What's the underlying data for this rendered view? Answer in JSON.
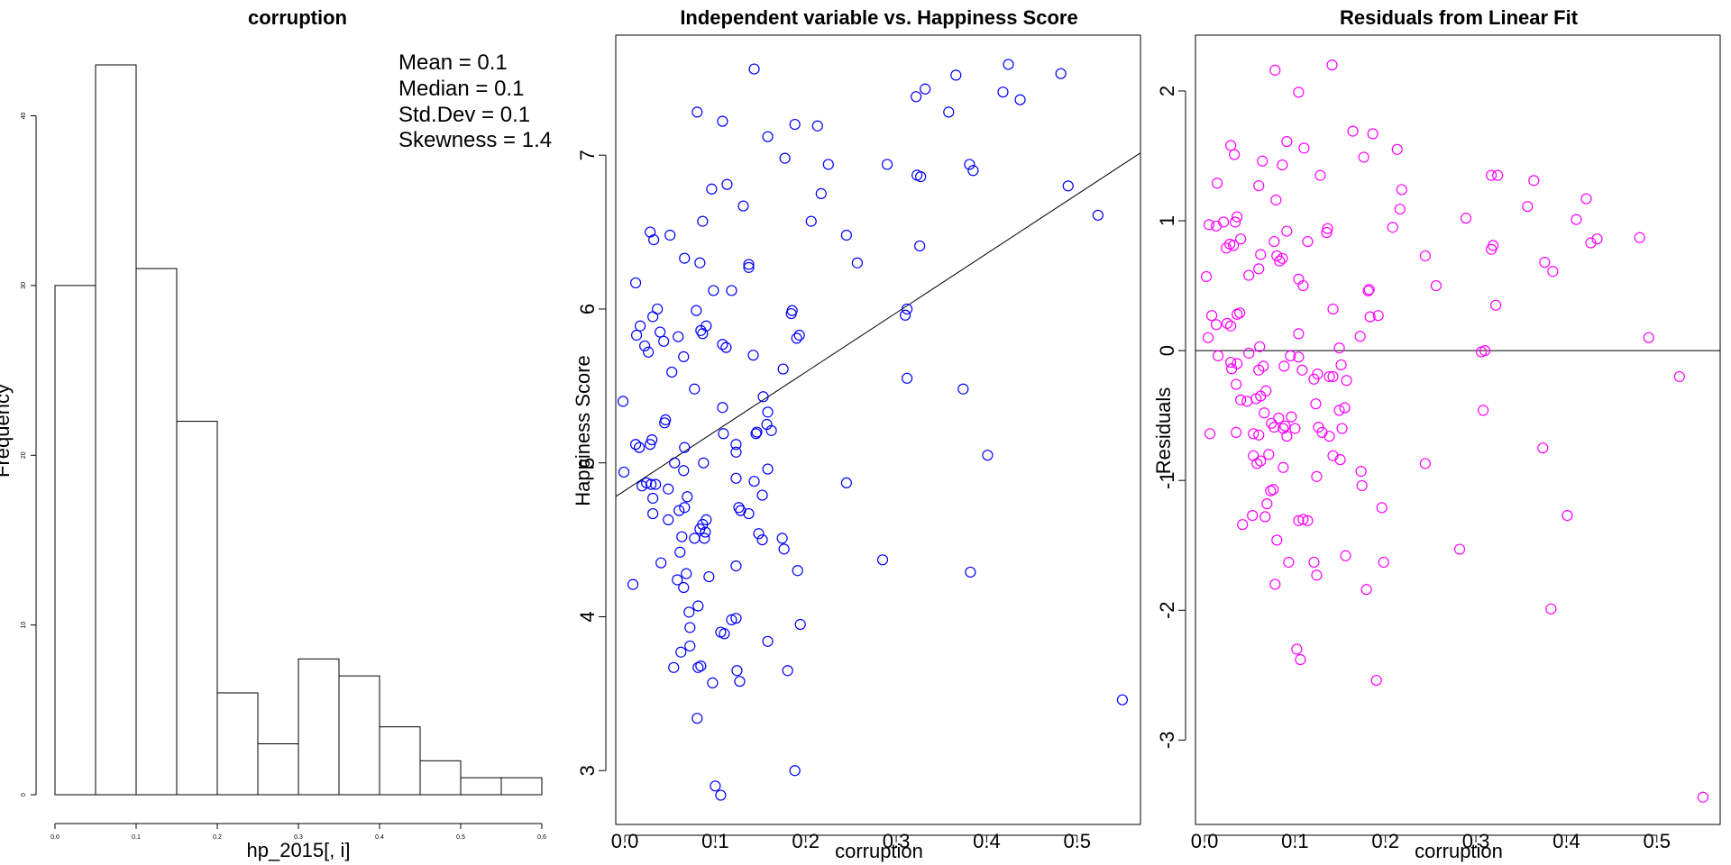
{
  "chart_data": [
    {
      "type": "bar",
      "title": "corruption",
      "xlabel": "hp_2015[, i]",
      "ylabel": "Frequency",
      "bin_edges": [
        0.0,
        0.05,
        0.1,
        0.15,
        0.2,
        0.25,
        0.3,
        0.35,
        0.4,
        0.45,
        0.5,
        0.55,
        0.6
      ],
      "values": [
        30,
        43,
        31,
        22,
        6,
        3,
        8,
        7,
        4,
        2,
        1,
        1
      ],
      "xlim": [
        0.0,
        0.6
      ],
      "ylim": [
        0,
        43
      ],
      "x_ticks": [
        "0.0",
        "0.1",
        "0.2",
        "0.3",
        "0.4",
        "0.5",
        "0.6"
      ],
      "y_ticks": [
        "0",
        "10",
        "20",
        "30",
        "40"
      ],
      "annotations": [
        "Mean = 0.1",
        "Median = 0.1",
        "Std.Dev = 0.1",
        "Skewness = 1.4"
      ]
    },
    {
      "type": "scatter",
      "title": "Independent variable vs. Happiness Score",
      "xlabel": "corruption",
      "ylabel": "Happiness Score",
      "xlim": [
        -0.01,
        0.57
      ],
      "ylim": [
        2.65,
        7.78
      ],
      "x_ticks": [
        "0.0",
        "0.1",
        "0.2",
        "0.3",
        "0.4",
        "0.5"
      ],
      "y_ticks": [
        "3",
        "4",
        "5",
        "6",
        "7"
      ],
      "color": "#0000ff",
      "fit_line": {
        "intercept": 4.82,
        "slope": 3.85
      },
      "points": [
        [
          0.143,
          7.56
        ],
        [
          0.424,
          7.59
        ],
        [
          0.08,
          7.28
        ],
        [
          0.108,
          7.22
        ],
        [
          0.366,
          7.52
        ],
        [
          0.482,
          7.53
        ],
        [
          0.332,
          7.43
        ],
        [
          0.418,
          7.41
        ],
        [
          0.437,
          7.36
        ],
        [
          0.322,
          7.38
        ],
        [
          0.358,
          7.28
        ],
        [
          0.188,
          7.2
        ],
        [
          0.213,
          7.19
        ],
        [
          0.158,
          7.12
        ],
        [
          0.177,
          6.98
        ],
        [
          0.225,
          6.94
        ],
        [
          0.29,
          6.94
        ],
        [
          0.381,
          6.94
        ],
        [
          0.385,
          6.9
        ],
        [
          0.323,
          6.87
        ],
        [
          0.327,
          6.86
        ],
        [
          0.113,
          6.81
        ],
        [
          0.096,
          6.78
        ],
        [
          0.49,
          6.8
        ],
        [
          0.217,
          6.75
        ],
        [
          0.131,
          6.67
        ],
        [
          0.086,
          6.57
        ],
        [
          0.206,
          6.57
        ],
        [
          0.523,
          6.61
        ],
        [
          0.245,
          6.48
        ],
        [
          0.05,
          6.48
        ],
        [
          0.028,
          6.5
        ],
        [
          0.032,
          6.45
        ],
        [
          0.326,
          6.41
        ],
        [
          0.066,
          6.33
        ],
        [
          0.083,
          6.3
        ],
        [
          0.137,
          6.29
        ],
        [
          0.257,
          6.3
        ],
        [
          0.137,
          6.27
        ],
        [
          0.012,
          6.17
        ],
        [
          0.098,
          6.12
        ],
        [
          0.118,
          6.12
        ],
        [
          0.185,
          5.99
        ],
        [
          0.184,
          5.97
        ],
        [
          0.036,
          6.0
        ],
        [
          0.079,
          5.99
        ],
        [
          0.031,
          5.95
        ],
        [
          0.312,
          6.0
        ],
        [
          0.31,
          5.96
        ],
        [
          0.017,
          5.89
        ],
        [
          0.09,
          5.89
        ],
        [
          0.084,
          5.86
        ],
        [
          0.086,
          5.84
        ],
        [
          0.039,
          5.85
        ],
        [
          0.013,
          5.83
        ],
        [
          0.193,
          5.83
        ],
        [
          0.19,
          5.81
        ],
        [
          0.059,
          5.82
        ],
        [
          0.043,
          5.79
        ],
        [
          0.108,
          5.77
        ],
        [
          0.112,
          5.75
        ],
        [
          0.022,
          5.76
        ],
        [
          0.026,
          5.72
        ],
        [
          0.142,
          5.7
        ],
        [
          0.065,
          5.69
        ],
        [
          0.175,
          5.61
        ],
        [
          0.052,
          5.59
        ],
        [
          0.312,
          5.55
        ],
        [
          0.077,
          5.48
        ],
        [
          0.374,
          5.48
        ],
        [
          0.153,
          5.43
        ],
        [
          -0.002,
          5.4
        ],
        [
          0.108,
          5.36
        ],
        [
          0.158,
          5.33
        ],
        [
          0.157,
          5.25
        ],
        [
          0.045,
          5.28
        ],
        [
          0.044,
          5.26
        ],
        [
          0.162,
          5.21
        ],
        [
          0.146,
          5.2
        ],
        [
          0.109,
          5.19
        ],
        [
          0.145,
          5.19
        ],
        [
          0.03,
          5.15
        ],
        [
          0.028,
          5.12
        ],
        [
          0.012,
          5.12
        ],
        [
          0.016,
          5.1
        ],
        [
          0.066,
          5.1
        ],
        [
          0.123,
          5.12
        ],
        [
          0.123,
          5.07
        ],
        [
          0.401,
          5.05
        ],
        [
          0.055,
          5.0
        ],
        [
          0.087,
          5.0
        ],
        [
          0.065,
          4.95
        ],
        [
          0.158,
          4.96
        ],
        [
          -0.001,
          4.94
        ],
        [
          0.123,
          4.9
        ],
        [
          0.143,
          4.88
        ],
        [
          0.024,
          4.87
        ],
        [
          0.029,
          4.86
        ],
        [
          0.034,
          4.86
        ],
        [
          0.019,
          4.85
        ],
        [
          0.245,
          4.87
        ],
        [
          0.048,
          4.83
        ],
        [
          0.152,
          4.79
        ],
        [
          0.069,
          4.78
        ],
        [
          0.031,
          4.77
        ],
        [
          0.066,
          4.71
        ],
        [
          0.126,
          4.71
        ],
        [
          0.128,
          4.69
        ],
        [
          0.06,
          4.69
        ],
        [
          0.137,
          4.67
        ],
        [
          0.031,
          4.67
        ],
        [
          0.048,
          4.63
        ],
        [
          0.09,
          4.63
        ],
        [
          0.086,
          4.6
        ],
        [
          0.083,
          4.57
        ],
        [
          0.089,
          4.55
        ],
        [
          0.063,
          4.52
        ],
        [
          0.077,
          4.51
        ],
        [
          0.088,
          4.51
        ],
        [
          0.174,
          4.51
        ],
        [
          0.148,
          4.54
        ],
        [
          0.152,
          4.5
        ],
        [
          0.176,
          4.44
        ],
        [
          0.061,
          4.42
        ],
        [
          0.04,
          4.35
        ],
        [
          0.123,
          4.33
        ],
        [
          0.285,
          4.37
        ],
        [
          0.382,
          4.29
        ],
        [
          0.191,
          4.3
        ],
        [
          0.068,
          4.28
        ],
        [
          0.058,
          4.24
        ],
        [
          0.093,
          4.26
        ],
        [
          0.065,
          4.19
        ],
        [
          0.009,
          4.21
        ],
        [
          0.081,
          4.07
        ],
        [
          0.071,
          4.03
        ],
        [
          0.194,
          3.95
        ],
        [
          0.118,
          3.98
        ],
        [
          0.123,
          3.99
        ],
        [
          0.072,
          3.93
        ],
        [
          0.106,
          3.9
        ],
        [
          0.11,
          3.89
        ],
        [
          0.158,
          3.84
        ],
        [
          0.072,
          3.81
        ],
        [
          0.062,
          3.77
        ],
        [
          0.084,
          3.68
        ],
        [
          0.081,
          3.67
        ],
        [
          0.054,
          3.67
        ],
        [
          0.124,
          3.65
        ],
        [
          0.18,
          3.65
        ],
        [
          0.127,
          3.58
        ],
        [
          0.097,
          3.57
        ],
        [
          0.55,
          3.46
        ],
        [
          0.08,
          3.34
        ],
        [
          0.188,
          3.0
        ],
        [
          0.1,
          2.9
        ],
        [
          0.106,
          2.84
        ]
      ]
    },
    {
      "type": "scatter",
      "title": "Residuals from Linear Fit",
      "xlabel": "corruption",
      "ylabel": "Residuals",
      "xlim": [
        -0.01,
        0.57
      ],
      "ylim": [
        -3.65,
        2.43
      ],
      "x_ticks": [
        "0.0",
        "0.1",
        "0.2",
        "0.3",
        "0.4",
        "0.5"
      ],
      "y_ticks": [
        "-3",
        "-2",
        "-1",
        "0",
        "1",
        "2"
      ],
      "color": "#ff00ff",
      "zero_line": 0,
      "points": [
        [
          0.078,
          2.16
        ],
        [
          0.141,
          2.2
        ],
        [
          0.104,
          1.99
        ],
        [
          0.029,
          1.58
        ],
        [
          0.091,
          1.61
        ],
        [
          0.11,
          1.56
        ],
        [
          0.164,
          1.69
        ],
        [
          0.186,
          1.67
        ],
        [
          0.213,
          1.55
        ],
        [
          0.033,
          1.51
        ],
        [
          0.064,
          1.46
        ],
        [
          0.06,
          1.27
        ],
        [
          0.128,
          1.35
        ],
        [
          0.324,
          1.35
        ],
        [
          0.317,
          1.35
        ],
        [
          0.364,
          1.31
        ],
        [
          0.086,
          1.43
        ],
        [
          0.014,
          1.29
        ],
        [
          0.218,
          1.24
        ],
        [
          0.176,
          1.49
        ],
        [
          0.079,
          1.16
        ],
        [
          0.422,
          1.17
        ],
        [
          0.357,
          1.11
        ],
        [
          0.216,
          1.09
        ],
        [
          0.289,
          1.02
        ],
        [
          0.411,
          1.01
        ],
        [
          0.036,
          1.03
        ],
        [
          0.034,
          0.99
        ],
        [
          0.021,
          0.99
        ],
        [
          0.013,
          0.96
        ],
        [
          0.005,
          0.97
        ],
        [
          0.136,
          0.94
        ],
        [
          0.135,
          0.91
        ],
        [
          0.091,
          0.92
        ],
        [
          0.208,
          0.95
        ],
        [
          0.434,
          0.86
        ],
        [
          0.427,
          0.83
        ],
        [
          0.481,
          0.87
        ],
        [
          0.04,
          0.86
        ],
        [
          0.077,
          0.84
        ],
        [
          0.114,
          0.84
        ],
        [
          0.032,
          0.81
        ],
        [
          0.319,
          0.81
        ],
        [
          0.317,
          0.78
        ],
        [
          0.024,
          0.79
        ],
        [
          0.028,
          0.82
        ],
        [
          0.062,
          0.74
        ],
        [
          0.08,
          0.73
        ],
        [
          0.086,
          0.71
        ],
        [
          0.083,
          0.69
        ],
        [
          0.244,
          0.73
        ],
        [
          0.376,
          0.68
        ],
        [
          0.385,
          0.61
        ],
        [
          0.104,
          0.55
        ],
        [
          0.109,
          0.5
        ],
        [
          0.256,
          0.5
        ],
        [
          0.049,
          0.58
        ],
        [
          0.002,
          0.57
        ],
        [
          0.06,
          0.63
        ],
        [
          0.182,
          0.47
        ],
        [
          0.181,
          0.46
        ],
        [
          0.322,
          0.35
        ],
        [
          0.142,
          0.32
        ],
        [
          0.183,
          0.26
        ],
        [
          0.192,
          0.27
        ],
        [
          0.008,
          0.27
        ],
        [
          0.039,
          0.29
        ],
        [
          0.036,
          0.28
        ],
        [
          0.025,
          0.21
        ],
        [
          0.029,
          0.19
        ],
        [
          0.013,
          0.2
        ],
        [
          0.172,
          0.11
        ],
        [
          0.104,
          0.13
        ],
        [
          0.491,
          0.1
        ],
        [
          0.004,
          0.1
        ],
        [
          0.149,
          0.02
        ],
        [
          0.061,
          0.03
        ],
        [
          0.049,
          -0.02
        ],
        [
          0.306,
          -0.01
        ],
        [
          0.31,
          0.0
        ],
        [
          0.095,
          -0.04
        ],
        [
          0.015,
          -0.04
        ],
        [
          0.104,
          -0.05
        ],
        [
          0.029,
          -0.09
        ],
        [
          0.036,
          -0.1
        ],
        [
          0.065,
          -0.12
        ],
        [
          0.06,
          -0.15
        ],
        [
          0.088,
          -0.12
        ],
        [
          0.151,
          -0.11
        ],
        [
          0.108,
          -0.15
        ],
        [
          0.03,
          -0.14
        ],
        [
          0.125,
          -0.18
        ],
        [
          0.121,
          -0.22
        ],
        [
          0.138,
          -0.2
        ],
        [
          0.157,
          -0.23
        ],
        [
          0.142,
          -0.2
        ],
        [
          0.525,
          -0.2
        ],
        [
          0.035,
          -0.26
        ],
        [
          0.068,
          -0.31
        ],
        [
          0.062,
          -0.35
        ],
        [
          0.057,
          -0.37
        ],
        [
          0.047,
          -0.39
        ],
        [
          0.04,
          -0.38
        ],
        [
          0.149,
          -0.46
        ],
        [
          0.155,
          -0.44
        ],
        [
          0.123,
          -0.41
        ],
        [
          0.308,
          -0.46
        ],
        [
          0.066,
          -0.48
        ],
        [
          0.082,
          -0.52
        ],
        [
          0.096,
          -0.51
        ],
        [
          0.074,
          -0.56
        ],
        [
          0.126,
          -0.59
        ],
        [
          0.1,
          -0.6
        ],
        [
          0.077,
          -0.59
        ],
        [
          0.089,
          -0.58
        ],
        [
          0.087,
          -0.6
        ],
        [
          0.13,
          -0.63
        ],
        [
          0.152,
          -0.6
        ],
        [
          0.006,
          -0.64
        ],
        [
          0.035,
          -0.63
        ],
        [
          0.054,
          -0.64
        ],
        [
          0.06,
          -0.65
        ],
        [
          0.091,
          -0.66
        ],
        [
          0.138,
          -0.66
        ],
        [
          0.374,
          -0.75
        ],
        [
          0.071,
          -0.8
        ],
        [
          0.054,
          -0.81
        ],
        [
          0.062,
          -0.85
        ],
        [
          0.142,
          -0.81
        ],
        [
          0.15,
          -0.84
        ],
        [
          0.058,
          -0.87
        ],
        [
          0.087,
          -0.9
        ],
        [
          0.173,
          -0.93
        ],
        [
          0.244,
          -0.87
        ],
        [
          0.124,
          -0.97
        ],
        [
          0.174,
          -1.04
        ],
        [
          0.076,
          -1.07
        ],
        [
          0.073,
          -1.08
        ],
        [
          0.069,
          -1.18
        ],
        [
          0.196,
          -1.21
        ],
        [
          0.401,
          -1.27
        ],
        [
          0.053,
          -1.27
        ],
        [
          0.067,
          -1.28
        ],
        [
          0.109,
          -1.3
        ],
        [
          0.114,
          -1.31
        ],
        [
          0.104,
          -1.31
        ],
        [
          0.042,
          -1.34
        ],
        [
          0.08,
          -1.46
        ],
        [
          0.282,
          -1.53
        ],
        [
          0.156,
          -1.58
        ],
        [
          0.198,
          -1.63
        ],
        [
          0.093,
          -1.63
        ],
        [
          0.121,
          -1.63
        ],
        [
          0.124,
          -1.73
        ],
        [
          0.078,
          -1.8
        ],
        [
          0.179,
          -1.84
        ],
        [
          0.383,
          -1.99
        ],
        [
          0.106,
          -2.38
        ],
        [
          0.102,
          -2.3
        ],
        [
          0.19,
          -2.54
        ],
        [
          0.551,
          -3.44
        ]
      ]
    }
  ]
}
